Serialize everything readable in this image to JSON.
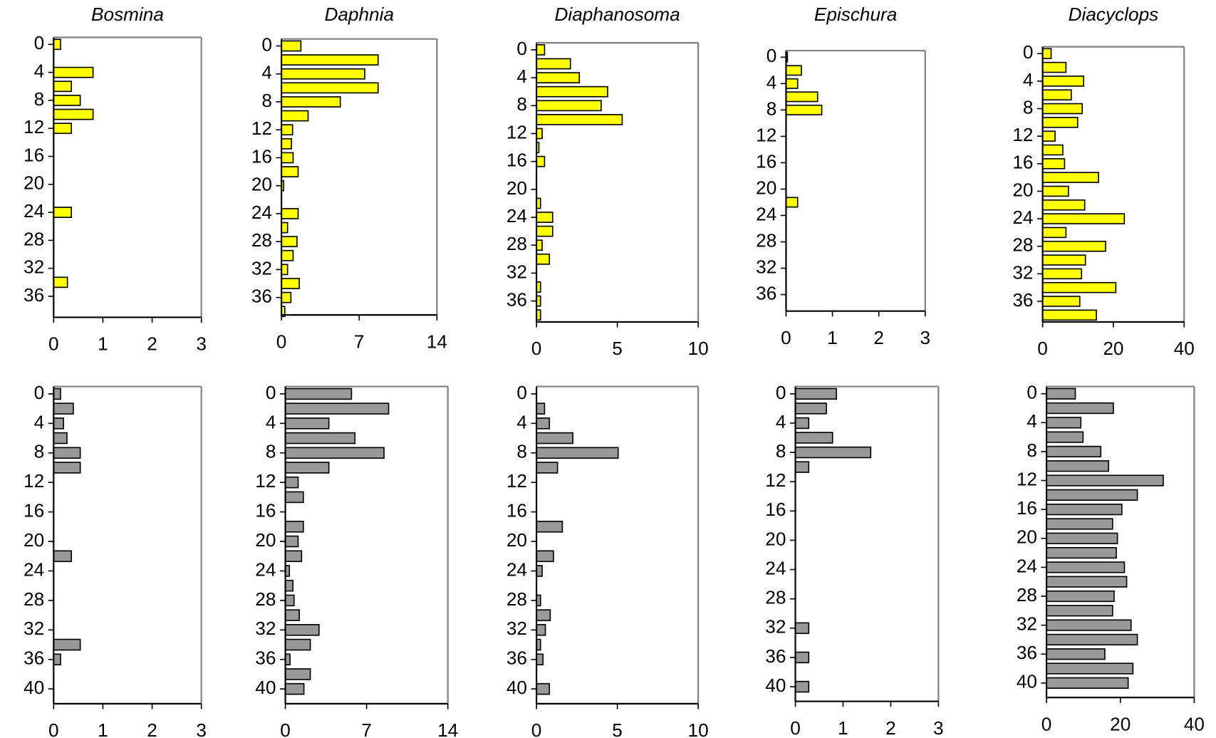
{
  "chart_data": [
    {
      "type": "bar",
      "orientation": "horizontal",
      "invert_y": true,
      "title": "Bosmina",
      "color": "#ffff00",
      "y": [
        0,
        2,
        4,
        6,
        8,
        10,
        12,
        14,
        16,
        18,
        20,
        22,
        24,
        26,
        28,
        30,
        32,
        34,
        36,
        38
      ],
      "values": [
        0.14,
        0,
        0.8,
        0.36,
        0.54,
        0.8,
        0.36,
        0,
        0,
        0,
        0,
        0,
        0.36,
        0,
        0,
        0,
        0,
        0.28,
        0,
        0
      ],
      "xlim": [
        0,
        3
      ],
      "xticks": [
        0,
        1,
        2,
        3
      ],
      "ylim": [
        -1,
        39
      ],
      "yticks": [
        0,
        4,
        8,
        12,
        16,
        20,
        24,
        28,
        32,
        36
      ]
    },
    {
      "type": "bar",
      "orientation": "horizontal",
      "invert_y": true,
      "title": "Daphnia",
      "color": "#ffff00",
      "y": [
        0,
        2,
        4,
        6,
        8,
        10,
        12,
        14,
        16,
        18,
        20,
        22,
        24,
        26,
        28,
        30,
        32,
        34,
        36,
        38
      ],
      "values": [
        1.75,
        8.7,
        7.5,
        8.7,
        5.3,
        2.4,
        1.0,
        0.9,
        1.05,
        1.5,
        0.2,
        0,
        1.5,
        0.55,
        1.4,
        1.05,
        0.55,
        1.6,
        0.85,
        0.3
      ],
      "xlim": [
        0,
        14
      ],
      "xticks": [
        0,
        7,
        14
      ],
      "ylim": [
        -1,
        38.5
      ],
      "yticks": [
        0,
        4,
        8,
        12,
        16,
        20,
        24,
        28,
        32,
        36
      ]
    },
    {
      "type": "bar",
      "orientation": "horizontal",
      "invert_y": true,
      "title": "Diaphanosoma",
      "color": "#ffff00",
      "y": [
        0,
        2,
        4,
        6,
        8,
        10,
        12,
        14,
        16,
        18,
        20,
        22,
        24,
        26,
        28,
        30,
        32,
        34,
        36,
        38
      ],
      "values": [
        0.5,
        2.1,
        2.65,
        4.4,
        4.0,
        5.3,
        0.35,
        0.15,
        0.5,
        0,
        0,
        0.25,
        1.0,
        1.0,
        0.35,
        0.8,
        0,
        0.25,
        0.25,
        0.25
      ],
      "xlim": [
        0,
        10
      ],
      "xticks": [
        0,
        5,
        10
      ],
      "ylim": [
        -1,
        39
      ],
      "yticks": [
        0,
        4,
        8,
        12,
        16,
        20,
        24,
        28,
        32,
        36
      ]
    },
    {
      "type": "bar",
      "orientation": "horizontal",
      "invert_y": true,
      "title": "Epischura",
      "color": "#ffff00",
      "y": [
        0,
        2,
        4,
        6,
        8,
        10,
        12,
        14,
        16,
        18,
        20,
        22,
        24,
        26,
        28,
        30,
        32,
        34,
        36,
        38
      ],
      "values": [
        0.03,
        0.33,
        0.25,
        0.68,
        0.77,
        0,
        0,
        0,
        0,
        0,
        0,
        0.25,
        0,
        0,
        0,
        0,
        0,
        0,
        0,
        0
      ],
      "xlim": [
        0,
        3
      ],
      "xticks": [
        0,
        1,
        2,
        3
      ],
      "ylim": [
        -1,
        38.5
      ],
      "yticks": [
        0,
        4,
        8,
        12,
        16,
        20,
        24,
        28,
        32,
        36
      ]
    },
    {
      "type": "bar",
      "orientation": "horizontal",
      "invert_y": true,
      "title": "Diacyclops",
      "color": "#ffff00",
      "y": [
        0,
        2,
        4,
        6,
        8,
        10,
        12,
        14,
        16,
        18,
        20,
        22,
        24,
        26,
        28,
        30,
        32,
        34,
        36,
        38
      ],
      "values": [
        2.4,
        6.6,
        11.6,
        8.1,
        11.2,
        9.9,
        3.5,
        5.7,
        6.2,
        15.8,
        7.3,
        11.9,
        23.1,
        6.6,
        17.8,
        12.1,
        11.0,
        20.7,
        10.5,
        15.2
      ],
      "xlim": [
        0,
        40
      ],
      "xticks": [
        0,
        20,
        40
      ],
      "ylim": [
        -1,
        39
      ],
      "yticks": [
        0,
        4,
        8,
        12,
        16,
        20,
        24,
        28,
        32,
        36
      ]
    },
    {
      "type": "bar",
      "orientation": "horizontal",
      "invert_y": true,
      "color": "#999999",
      "y": [
        0,
        2,
        4,
        6,
        8,
        10,
        12,
        14,
        16,
        18,
        20,
        22,
        24,
        26,
        28,
        30,
        32,
        34,
        36,
        38,
        40
      ],
      "values": [
        0.14,
        0.4,
        0.2,
        0.27,
        0.54,
        0.54,
        0,
        0,
        0,
        0,
        0,
        0.36,
        0,
        0,
        0,
        0,
        0,
        0.54,
        0.14,
        0,
        0
      ],
      "xlim": [
        0,
        3
      ],
      "xticks": [
        0,
        1,
        2,
        3
      ],
      "ylim": [
        -1,
        42
      ],
      "yticks": [
        0,
        4,
        8,
        12,
        16,
        20,
        24,
        28,
        32,
        36,
        40
      ]
    },
    {
      "type": "bar",
      "orientation": "horizontal",
      "invert_y": true,
      "color": "#999999",
      "y": [
        0,
        2,
        4,
        6,
        8,
        10,
        12,
        14,
        16,
        18,
        20,
        22,
        24,
        26,
        28,
        30,
        32,
        34,
        36,
        38,
        40
      ],
      "values": [
        5.7,
        8.9,
        3.75,
        6.0,
        8.5,
        3.75,
        1.1,
        1.55,
        0,
        1.55,
        1.1,
        1.4,
        0.35,
        0.65,
        0.75,
        1.2,
        2.9,
        2.15,
        0.4,
        2.15,
        1.6
      ],
      "xlim": [
        0,
        14
      ],
      "xticks": [
        0,
        7,
        14
      ],
      "ylim": [
        -1,
        42
      ],
      "yticks": [
        0,
        4,
        8,
        12,
        16,
        20,
        24,
        28,
        32,
        36,
        40
      ]
    },
    {
      "type": "bar",
      "orientation": "horizontal",
      "invert_y": true,
      "color": "#999999",
      "y": [
        0,
        2,
        4,
        6,
        8,
        10,
        12,
        14,
        16,
        18,
        20,
        22,
        24,
        26,
        28,
        30,
        32,
        34,
        36,
        38,
        40
      ],
      "values": [
        0,
        0.5,
        0.8,
        2.25,
        5.05,
        1.3,
        0,
        0,
        0,
        1.6,
        0,
        1.05,
        0.35,
        0,
        0.25,
        0.85,
        0.55,
        0.25,
        0.4,
        0,
        0.8
      ],
      "xlim": [
        0,
        10
      ],
      "xticks": [
        0,
        5,
        10
      ],
      "ylim": [
        -1,
        42
      ],
      "yticks": [
        0,
        4,
        8,
        12,
        16,
        20,
        24,
        28,
        32,
        36,
        40
      ]
    },
    {
      "type": "bar",
      "orientation": "horizontal",
      "invert_y": true,
      "color": "#999999",
      "y": [
        0,
        2,
        4,
        6,
        8,
        10,
        12,
        14,
        16,
        18,
        20,
        22,
        24,
        26,
        28,
        30,
        32,
        34,
        36,
        38,
        40
      ],
      "values": [
        0.86,
        0.65,
        0.28,
        0.78,
        1.58,
        0.28,
        0,
        0,
        0,
        0,
        0,
        0,
        0,
        0,
        0,
        0,
        0.28,
        0,
        0.28,
        0,
        0.28
      ],
      "xlim": [
        0,
        3
      ],
      "xticks": [
        0,
        1,
        2,
        3
      ],
      "ylim": [
        -1,
        42
      ],
      "yticks": [
        0,
        4,
        8,
        12,
        16,
        20,
        24,
        28,
        32,
        36,
        40
      ]
    },
    {
      "type": "bar",
      "orientation": "horizontal",
      "invert_y": true,
      "color": "#999999",
      "y": [
        0,
        2,
        4,
        6,
        8,
        10,
        12,
        14,
        16,
        18,
        20,
        22,
        24,
        26,
        28,
        30,
        32,
        34,
        36,
        38,
        40
      ],
      "values": [
        7.8,
        18.1,
        9.3,
        9.9,
        14.7,
        16.8,
        31.6,
        24.6,
        20.4,
        17.9,
        19.2,
        18.9,
        21.1,
        21.7,
        18.3,
        17.9,
        22.9,
        24.6,
        15.8,
        23.4,
        22.1
      ],
      "xlim": [
        0,
        40
      ],
      "xticks": [
        0,
        20,
        40
      ],
      "ylim": [
        -1,
        42
      ],
      "yticks": [
        0,
        4,
        8,
        12,
        16,
        20,
        24,
        28,
        32,
        36,
        40
      ]
    }
  ]
}
